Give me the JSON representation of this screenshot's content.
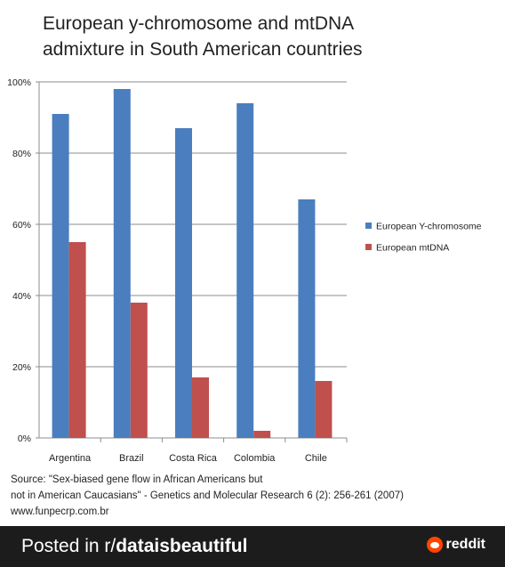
{
  "chart_data": {
    "type": "bar",
    "title": "European y-chromosome and mtDNA\nadmixture in South American countries",
    "categories": [
      "Argentina",
      "Brazil",
      "Costa Rica",
      "Colombia",
      "Chile"
    ],
    "series": [
      {
        "name": "European Y-chromosome",
        "values": [
          91,
          98,
          87,
          94,
          67
        ],
        "color": "#4a7ebf"
      },
      {
        "name": "European mtDNA",
        "values": [
          55,
          38,
          17,
          2,
          16
        ],
        "color": "#c0504d"
      }
    ],
    "ylim": [
      0,
      100
    ],
    "yticks": [
      "0%",
      "20%",
      "40%",
      "60%",
      "80%",
      "100%"
    ],
    "ytick_values": [
      0,
      20,
      40,
      60,
      80,
      100
    ],
    "grid": true,
    "legend_position": "right"
  },
  "source": {
    "line1": "Source: \"Sex-biased gene flow in African Americans but",
    "line2": "not in American Caucasians\" - Genetics and Molecular Research 6 (2): 256-261 (2007)",
    "line3": "www.funpecrp.com.br"
  },
  "footer": {
    "posted_prefix": "Posted in r/",
    "subreddit": "dataisbeautiful",
    "brand": "reddit",
    "brand_color": "#ff4500",
    "background": "#1c1c1c"
  }
}
